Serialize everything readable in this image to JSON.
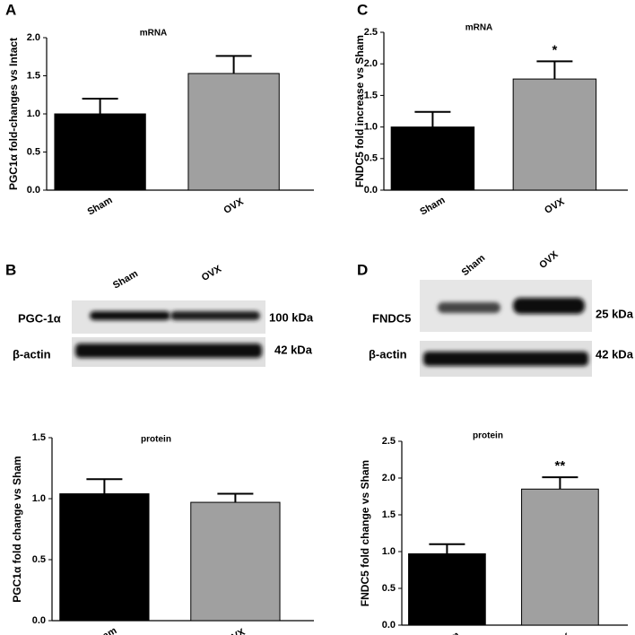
{
  "panel_labels": [
    "A",
    "B",
    "C",
    "D"
  ],
  "blots": [
    {
      "lanes": [
        "Sham",
        "OVX"
      ],
      "bands": [
        {
          "name": "PGC-1α",
          "size": "100 kDa"
        },
        {
          "name": "β-actin",
          "size": "42 kDa"
        }
      ]
    },
    {
      "lanes": [
        "Sham",
        "OVX"
      ],
      "bands": [
        {
          "name": "FNDC5",
          "size": "25 kDa"
        },
        {
          "name": "β-actin",
          "size": "42 kDa"
        }
      ]
    }
  ],
  "chart_data": [
    {
      "type": "bar",
      "title": "mRNA",
      "y_label": "PGC1α fold-changes vs Intact",
      "categories": [
        "Sham",
        "OVX"
      ],
      "values": [
        1.0,
        1.53
      ],
      "errors": [
        0.2,
        0.23
      ],
      "colors": [
        "#000000",
        "#a0a0a0"
      ],
      "ylim": [
        0,
        2
      ],
      "yticks": [
        {
          "value": 0,
          "label": "0.0"
        },
        0.5,
        {
          "value": 1,
          "label": "1.0"
        },
        1.5,
        {
          "value": 2,
          "label": "2.0"
        }
      ]
    },
    {
      "type": "bar",
      "title": "mRNA",
      "y_label": "FNDC5 fold increase vs Sham",
      "categories": [
        "Sham",
        "OVX"
      ],
      "values": [
        1.0,
        1.76
      ],
      "errors": [
        0.24,
        0.28
      ],
      "colors": [
        "#000000",
        "#a0a0a0"
      ],
      "annotations": [
        null,
        "*"
      ],
      "ylim": [
        0,
        2.5
      ],
      "yticks": [
        {
          "value": 0,
          "label": "0.0"
        },
        0.5,
        {
          "value": 1,
          "label": "1.0"
        },
        1.5,
        {
          "value": 2,
          "label": "2.0"
        },
        2.5
      ]
    },
    {
      "type": "bar",
      "title": "protein",
      "y_label": "PGC1α fold change vs Sham",
      "categories": [
        "Sham",
        "OVX"
      ],
      "values": [
        1.04,
        0.97
      ],
      "errors": [
        0.12,
        0.07
      ],
      "colors": [
        "#000000",
        "#a0a0a0"
      ],
      "ylim": [
        0,
        1.5
      ],
      "yticks": [
        {
          "value": 0,
          "label": "0.0"
        },
        0.5,
        {
          "value": 1,
          "label": "1.0"
        },
        1.5
      ]
    },
    {
      "type": "bar",
      "title": "protein",
      "y_label": "FNDC5 fold change vs Sham",
      "categories": [
        "Sham",
        "OVX"
      ],
      "values": [
        0.97,
        1.85
      ],
      "errors": [
        0.13,
        0.16
      ],
      "colors": [
        "#000000",
        "#a0a0a0"
      ],
      "annotations": [
        null,
        "**"
      ],
      "ylim": [
        0,
        2.5
      ],
      "yticks": [
        {
          "value": 0,
          "label": "0.0"
        },
        0.5,
        {
          "value": 1,
          "label": "1.0"
        },
        1.5,
        {
          "value": 2,
          "label": "2.0"
        },
        2.5
      ]
    }
  ]
}
